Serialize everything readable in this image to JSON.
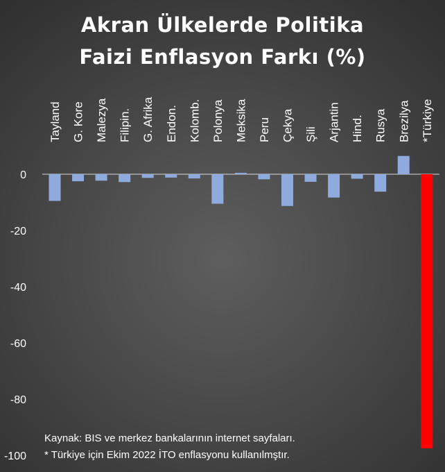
{
  "title": {
    "line1": "Akran Ülkelerde Politika",
    "line2": "Faizi Enflasyon Farkı (%)"
  },
  "source": {
    "line1": "Kaynak: BIS ve merkez bankalarının internet sayfaları.",
    "line2": "* Türkiye için Ekim 2022 İTO enflasyonu kullanılmştır."
  },
  "colors": {
    "bar": "#8faadc",
    "highlight": "#ff0000",
    "text": "#ffffff",
    "zero_line": "#d9d9d9"
  },
  "chart_data": {
    "type": "bar",
    "title": "Akran Ülkelerde Politika Faizi Enflasyon Farkı (%)",
    "xlabel": "",
    "ylabel": "",
    "categories": [
      "Tayland",
      "G. Kore",
      "Malezya",
      "Filipin.",
      "G. Afrika",
      "Endon.",
      "Kolomb.",
      "Polonya",
      "Meksika",
      "Peru",
      "Çekya",
      "Şili",
      "Arjantin",
      "Hind.",
      "Rusya",
      "Brezilya",
      "*Türkiye"
    ],
    "values": [
      -9.5,
      -2.5,
      -2.3,
      -2.8,
      -1.3,
      -1.2,
      -1.5,
      -10.5,
      0.5,
      -1.8,
      -11.3,
      -2.7,
      -8.3,
      -1.6,
      -6.2,
      6.5,
      -97.5
    ],
    "highlight_category": "*Türkiye",
    "ylim": [
      -100,
      10
    ],
    "yticks": [
      0,
      -20,
      -40,
      -60,
      -80,
      -100
    ],
    "category_labels_position": "top, rotated vertical",
    "grid": false,
    "legend": "none"
  }
}
